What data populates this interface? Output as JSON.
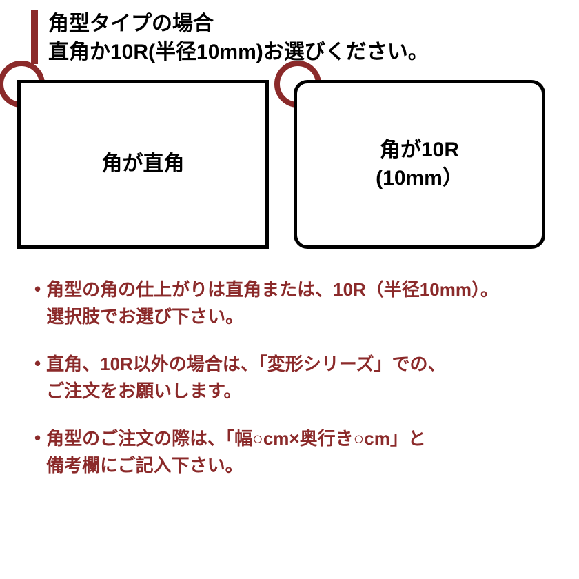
{
  "header": {
    "line1": "角型タイプの場合",
    "line2": "直角か10R(半径10mm)お選びください。"
  },
  "diagrams": {
    "left": {
      "label": "角が直角",
      "corner_type": "sharp",
      "border_radius": 0
    },
    "right": {
      "label_line1": "角が10R",
      "label_line2": "(10mm）",
      "corner_type": "rounded",
      "border_radius": 20
    }
  },
  "bullets": {
    "item1": {
      "line1": "角型の角の仕上がりは直角または、10R（半径10mm）。",
      "line2": "選択肢でお選び下さい。"
    },
    "item2": {
      "line1": "直角、10R以外の場合は、「変形シリーズ」での、",
      "line2": "ご注文をお願いします。"
    },
    "item3": {
      "line1": "角型のご注文の際は、「幅○cm×奥行き○cm」と",
      "line2": "備考欄にご記入下さい。"
    }
  },
  "colors": {
    "accent": "#8b2a2a",
    "text_black": "#000000",
    "background": "#ffffff",
    "border_black": "#000000"
  },
  "shapes": {
    "box_border_width": 5,
    "circle_border_width": 8,
    "circle_diameter": 68,
    "header_bar_width": 10
  }
}
